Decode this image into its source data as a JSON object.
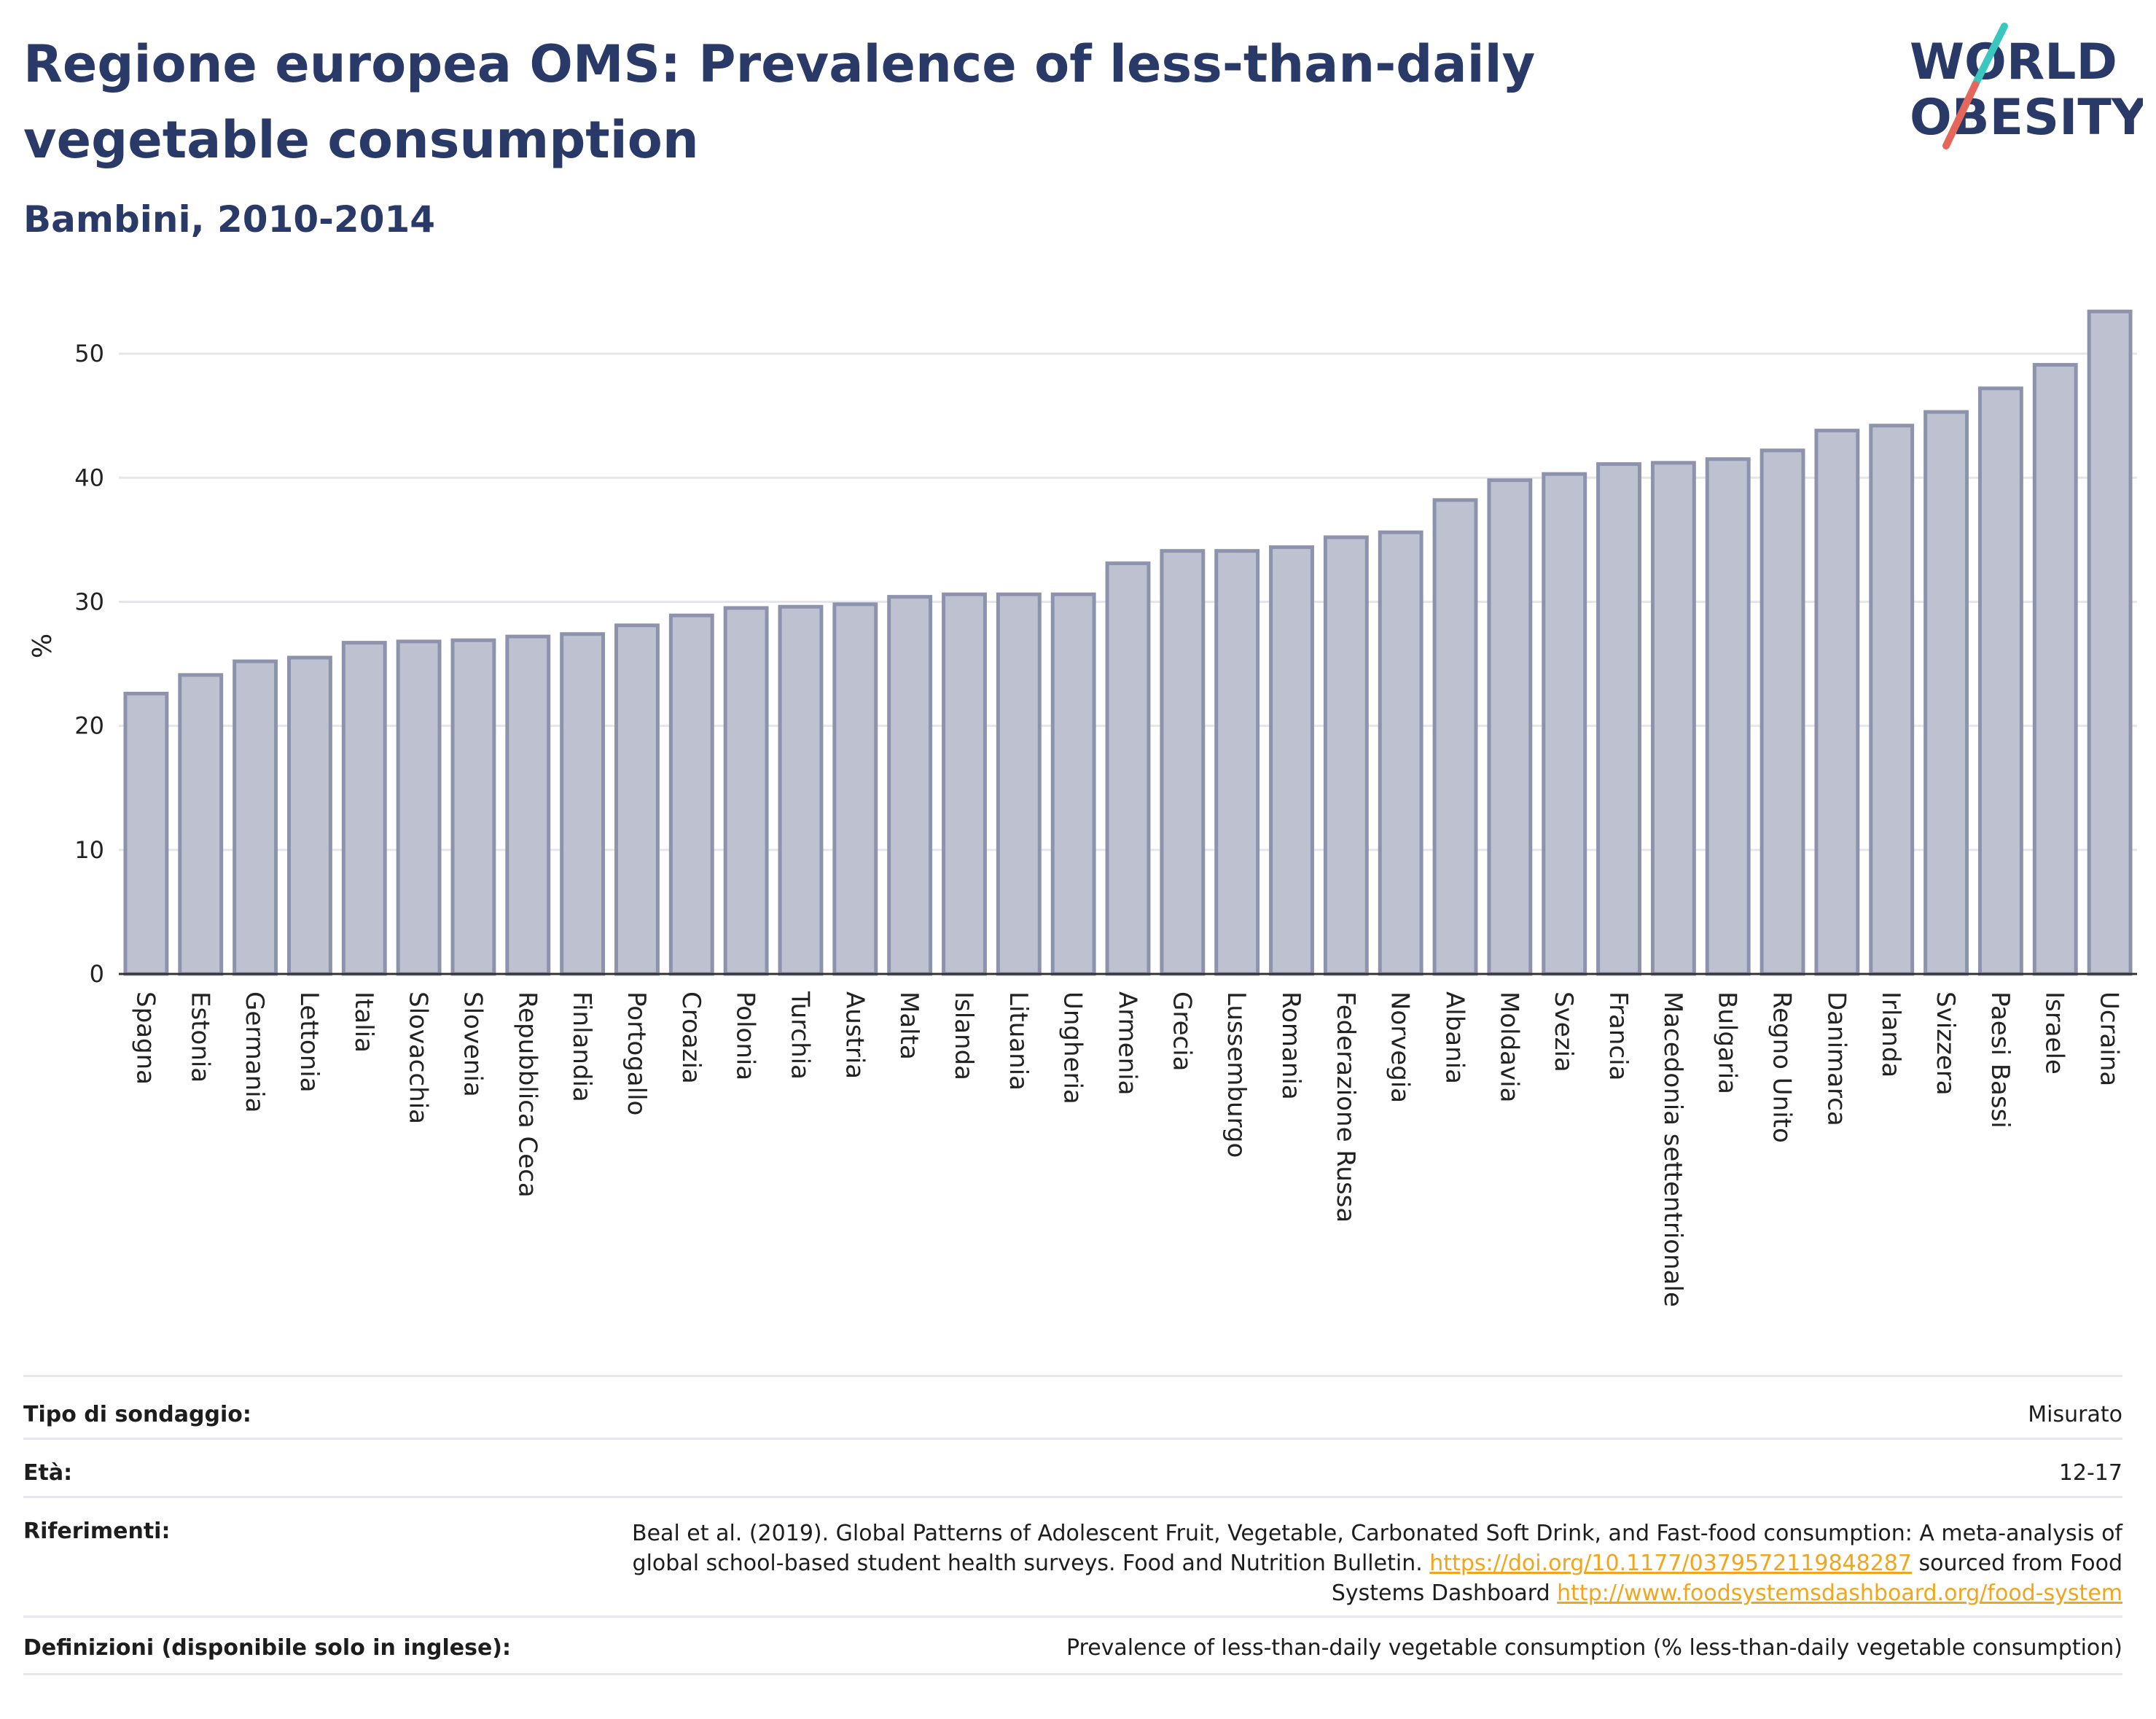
{
  "header": {
    "title": "Regione europea OMS: Prevalence of less-than-daily vegetable consumption",
    "subtitle": "Bambini, 2010-2014"
  },
  "logo": {
    "line1": "WORLD",
    "line2": "OBESITY",
    "accent_colors": [
      "#3cc6c0",
      "#e5675c"
    ]
  },
  "chart_data": {
    "type": "bar",
    "ylabel": "%",
    "ylim": [
      0,
      55
    ],
    "yticks": [
      0,
      10,
      20,
      30,
      40,
      50
    ],
    "grid": true,
    "bar_fill": "#bdc1d0",
    "bar_stroke": "#8d93ad",
    "categories": [
      "Spagna",
      "Estonia",
      "Germania",
      "Lettonia",
      "Italia",
      "Slovacchia",
      "Slovenia",
      "Repubblica Ceca",
      "Finlandia",
      "Portogallo",
      "Croazia",
      "Polonia",
      "Turchia",
      "Austria",
      "Malta",
      "Islanda",
      "Lituania",
      "Ungheria",
      "Armenia",
      "Grecia",
      "Lussemburgo",
      "Romania",
      "Federazione Russa",
      "Norvegia",
      "Albania",
      "Moldavia",
      "Svezia",
      "Francia",
      "Macedonia settentrionale",
      "Bulgaria",
      "Regno Unito",
      "Danimarca",
      "Irlanda",
      "Svizzera",
      "Paesi Bassi",
      "Israele",
      "Ucraina"
    ],
    "values": [
      22.6,
      24.1,
      25.2,
      25.5,
      26.7,
      26.8,
      26.9,
      27.2,
      27.4,
      28.1,
      28.9,
      29.5,
      29.6,
      29.8,
      30.4,
      30.6,
      30.6,
      30.6,
      33.1,
      34.1,
      34.1,
      34.4,
      35.2,
      35.6,
      38.2,
      39.8,
      40.3,
      41.1,
      41.2,
      41.5,
      42.2,
      43.8,
      44.2,
      45.3,
      47.2,
      49.1,
      53.4
    ]
  },
  "info": {
    "survey_type": {
      "label": "Tipo di sondaggio:",
      "value": "Misurato"
    },
    "age": {
      "label": "Età:",
      "value": "12-17"
    },
    "references": {
      "label": "Riferimenti:",
      "text1": "Beal et al. (2019). Global Patterns of Adolescent Fruit, Vegetable, Carbonated Soft Drink, and Fast-food consumption: A meta-analysis of global school-based student health surveys. Food and Nutrition Bulletin. ",
      "link1": "https://doi.org/10.1177/0379572119848287",
      "text2": " sourced from Food Systems Dashboard ",
      "link2": "http://www.foodsystemsdashboard.org/food-system"
    },
    "definitions": {
      "label": "Definizioni (disponibile solo in inglese):",
      "value": "Prevalence of less-than-daily vegetable consumption (% less-than-daily vegetable consumption)"
    }
  }
}
